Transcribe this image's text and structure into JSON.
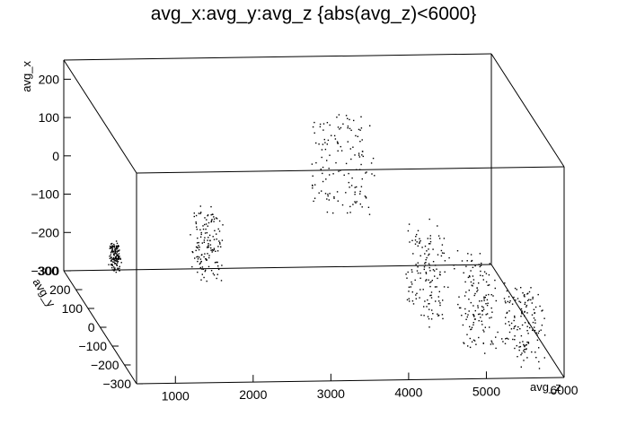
{
  "chart_data": {
    "type": "scatter",
    "title": "avg_x:avg_y:avg_z {abs(avg_z)<6000}",
    "xlabel": "avg_z",
    "ylabel": "avg_y",
    "zlabel": "avg_x",
    "x_range": [
      500,
      6000
    ],
    "y_range": [
      -300,
      300
    ],
    "z_range": [
      -300,
      250
    ],
    "x_ticks": [
      "1000",
      "2000",
      "3000",
      "4000",
      "5000",
      "6000"
    ],
    "y_ticks": [
      "300",
      "200",
      "100",
      "0",
      "−100",
      "−200",
      "−300"
    ],
    "z_ticks": [
      "200",
      "100",
      "0",
      "−100",
      "−200",
      "−300"
    ],
    "marker_color": "#000000",
    "clusters": [
      {
        "z_range": [
          620,
          740
        ],
        "y_range": [
          -20,
          20
        ],
        "x_range": [
          -150,
          -80
        ]
      },
      {
        "z_range": [
          1700,
          2000
        ],
        "y_range": [
          -60,
          40
        ],
        "x_range": [
          -160,
          0
        ]
      },
      {
        "z_range": [
          3600,
          4300
        ],
        "y_range": [
          150,
          290
        ],
        "x_range": [
          -100,
          130
        ]
      },
      {
        "z_range": [
          4500,
          4900
        ],
        "y_range": [
          -80,
          80
        ],
        "x_range": [
          -280,
          -60
        ]
      },
      {
        "z_range": [
          4900,
          5300
        ],
        "y_range": [
          -220,
          -80
        ],
        "x_range": [
          -280,
          -60
        ]
      },
      {
        "z_range": [
          5400,
          5800
        ],
        "y_range": [
          -280,
          -150
        ],
        "x_range": [
          -290,
          -120
        ]
      }
    ]
  }
}
